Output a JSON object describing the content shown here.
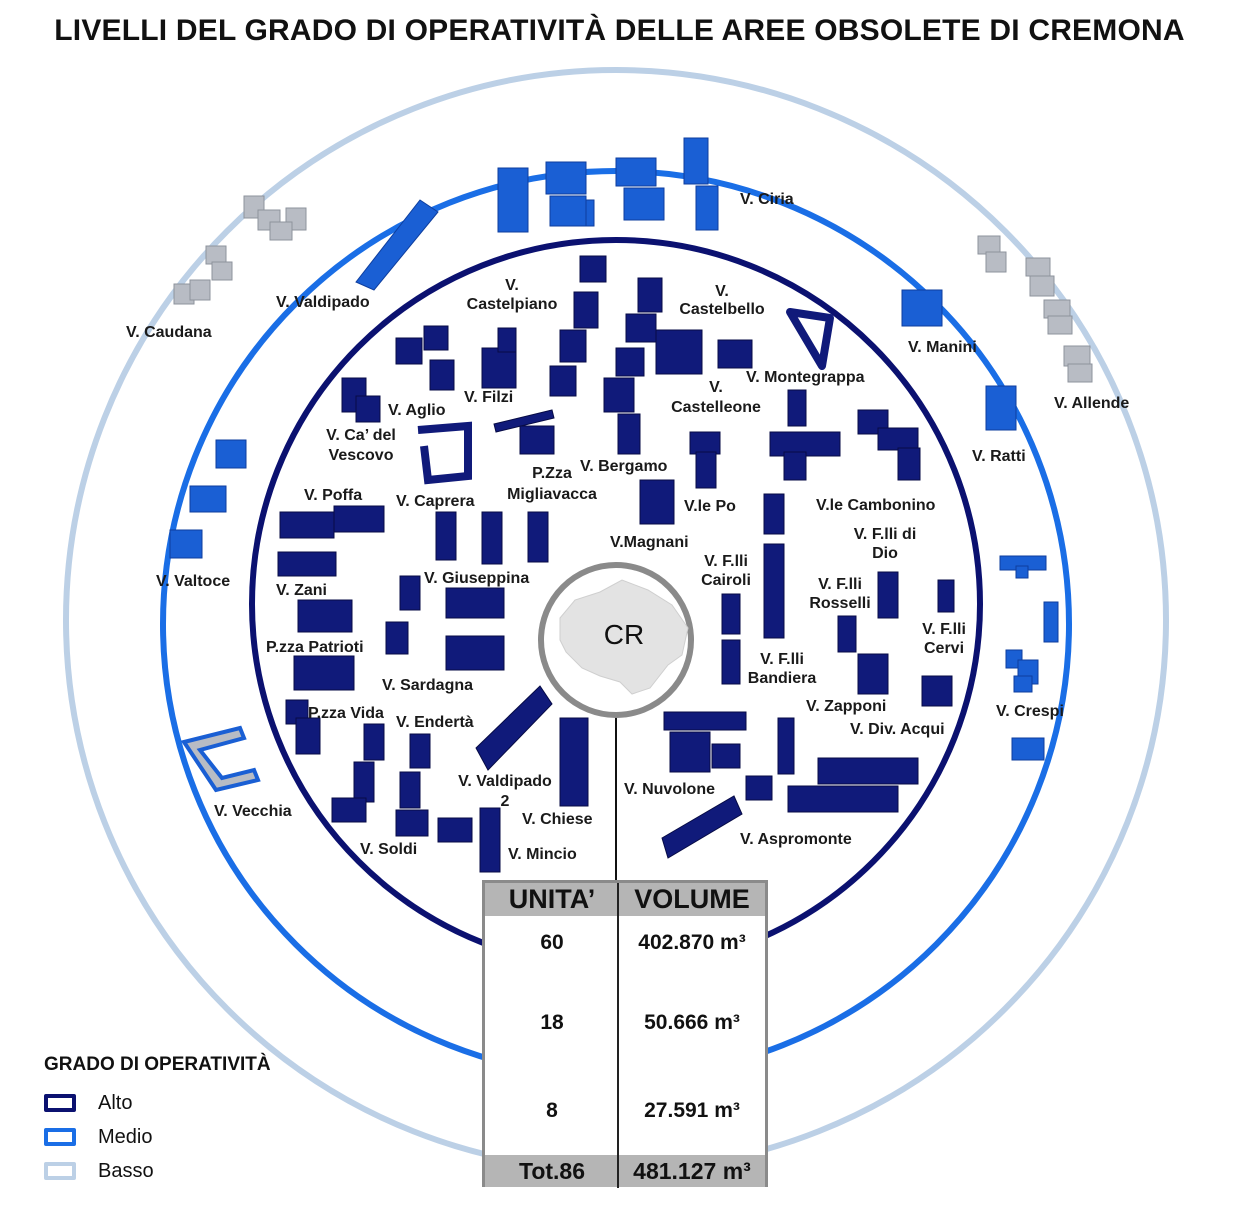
{
  "title": "LIVELLI DEL GRADO DI OPERATIVITÀ DELLE AREE OBSOLETE DI CREMONA",
  "center_label": "CR",
  "colors": {
    "alto": "#0b1170",
    "medio": "#1a6ee6",
    "basso": "#bcd0e6",
    "building_alto": "#101a7a",
    "building_medio": "#1a5fd4",
    "building_basso": "#b8bcc4"
  },
  "legend": {
    "title": "GRADO DI OPERATIVITÀ",
    "items": [
      {
        "label": "Alto"
      },
      {
        "label": "Medio"
      },
      {
        "label": "Basso"
      }
    ]
  },
  "table": {
    "headers": [
      "UNITA’",
      "VOLUME"
    ],
    "rows": [
      {
        "unita": "60",
        "volume": "402.870 m³"
      },
      {
        "unita": "18",
        "volume": "50.666 m³"
      },
      {
        "unita": "8",
        "volume": "27.591 m³"
      }
    ],
    "total": {
      "unita": "Tot.86",
      "volume": "481.127 m³"
    }
  },
  "areas": {
    "basso": [
      "V. Caudana",
      "V. Allende",
      "V. Vecchia"
    ],
    "medio": [
      "V. Ciria",
      "V. Valdipado",
      "V. Manini",
      "V. Ratti",
      "V. Valtoce",
      "V. Crespi"
    ],
    "alto": [
      "V. Castelpiano",
      "V. Castelbello",
      "V. Montegrappa",
      "V. Filzi",
      "V. Aglio",
      "V. Castelleone",
      "V. Ca’ del Vescovo",
      "P.Zza Migliavacca",
      "V. Bergamo",
      "V. Poffa",
      "V. Caprera",
      "V.le Po",
      "V.le Cambonino",
      "V.Magnani",
      "V. F.lli di Dio",
      "V. Zani",
      "V. Giuseppina",
      "V. F.lli Cairoli",
      "V. F.lli Rosselli",
      "V. F.lli Cervi",
      "P.zza Patrioti",
      "V. F.lli Bandiera",
      "V. Sardagna",
      "V. Zapponi",
      "P.zza Vida",
      "V. Endertà",
      "V. Div. Acqui",
      "V. Valdipado 2",
      "V. Nuvolone",
      "V. Chiese",
      "V. Soldi",
      "V. Mincio",
      "V. Aspromonte"
    ]
  }
}
